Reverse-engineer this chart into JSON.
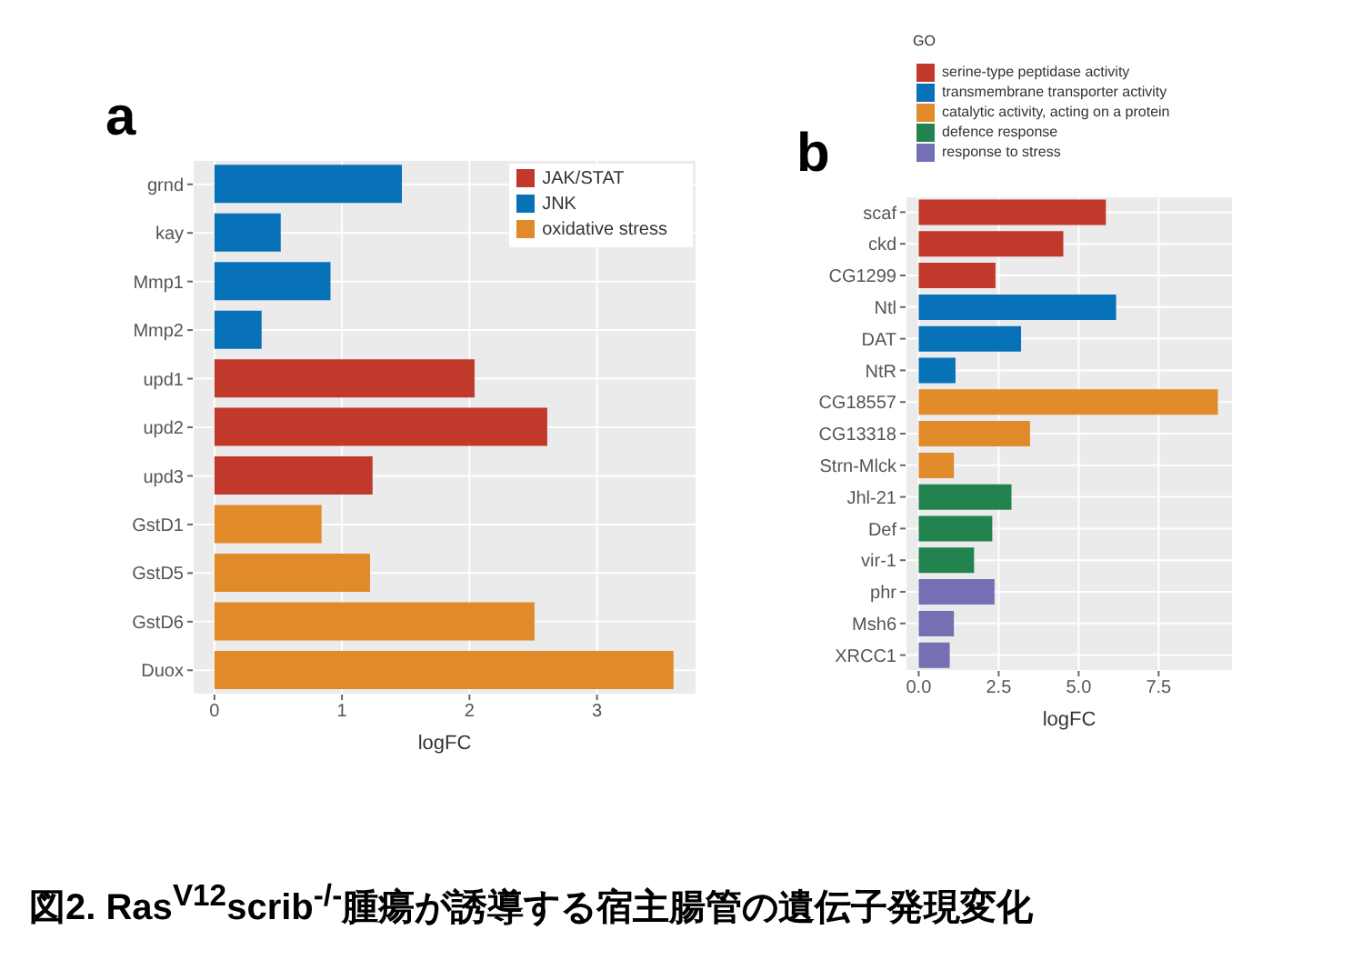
{
  "chart_data": [
    {
      "type": "bar",
      "title": "a",
      "orientation": "horizontal",
      "stacked": true,
      "xlabel": "logFC",
      "categories": [
        "grnd",
        "kay",
        "Mmp1",
        "Mmp2",
        "upd1",
        "upd2",
        "upd3",
        "GstD1",
        "GstD5",
        "GstD6",
        "Duox"
      ],
      "series": [
        {
          "name": "JAK/STAT",
          "color": "#c0392b",
          "values": [
            null,
            null,
            null,
            null,
            2.04,
            2.61,
            1.24,
            null,
            null,
            null,
            null
          ]
        },
        {
          "name": "JNK",
          "color": "#0872b9",
          "values": [
            1.47,
            0.52,
            0.91,
            0.37,
            null,
            null,
            null,
            null,
            null,
            null,
            null
          ]
        },
        {
          "name": "oxidative stress",
          "color": "#e08a2a",
          "values": [
            null,
            null,
            null,
            null,
            null,
            null,
            null,
            0.84,
            1.22,
            2.51,
            3.6
          ]
        }
      ],
      "xlim": [
        -0.17,
        3.78
      ],
      "xticks": [
        0,
        1,
        2,
        3
      ],
      "grid": true,
      "legend": "top right",
      "annotations": [
        "図2. Ras$^{V12}$scrib$^{-/-}$腫瘍が誘導する宿主腸管の遺伝子発現変化"
      ]
    },
    {
      "type": "bar",
      "title": "b",
      "orientation": "horizontal",
      "stacked": true,
      "xlabel": "logFC",
      "legend_title": "GO",
      "categories": [
        "scaf",
        "ckd",
        "CG1299",
        "Ntl",
        "DAT",
        "NtR",
        "CG18557",
        "CG13318",
        "Strn-Mlck",
        "Jhl-21",
        "Def",
        "vir-1",
        "phr",
        "Msh6",
        "XRCC1"
      ],
      "series": [
        {
          "name": "serine-type peptidase activity",
          "color": "#c0392b",
          "values": [
            5.85,
            4.52,
            2.4,
            null,
            null,
            null,
            null,
            null,
            null,
            null,
            null,
            null,
            null,
            null,
            null
          ]
        },
        {
          "name": "transmembrane transporter activity",
          "color": "#0872b9",
          "values": [
            null,
            null,
            null,
            6.17,
            3.2,
            1.15,
            null,
            null,
            null,
            null,
            null,
            null,
            null,
            null,
            null
          ]
        },
        {
          "name": "catalytic activity, acting on a protein",
          "color": "#e08a2a",
          "values": [
            null,
            null,
            null,
            null,
            null,
            null,
            9.35,
            3.48,
            1.1,
            null,
            null,
            null,
            null,
            null,
            null
          ]
        },
        {
          "name": "defence response",
          "color": "#23834f",
          "values": [
            null,
            null,
            null,
            null,
            null,
            null,
            null,
            null,
            null,
            2.9,
            2.3,
            1.73,
            null,
            null,
            null
          ]
        },
        {
          "name": "response to stress",
          "color": "#7570b3",
          "values": [
            null,
            null,
            null,
            null,
            null,
            null,
            null,
            null,
            null,
            null,
            null,
            null,
            2.37,
            1.1,
            0.97
          ]
        }
      ],
      "xlim": [
        -0.41,
        9.82
      ],
      "xticks": [
        {
          "value": 0,
          "label": "0.0"
        },
        {
          "value": 2.5,
          "label": "2.5"
        },
        {
          "value": 5,
          "label": "5.0"
        },
        {
          "value": 7.5,
          "label": "7.5"
        }
      ],
      "grid": true,
      "legend": "top"
    }
  ]
}
